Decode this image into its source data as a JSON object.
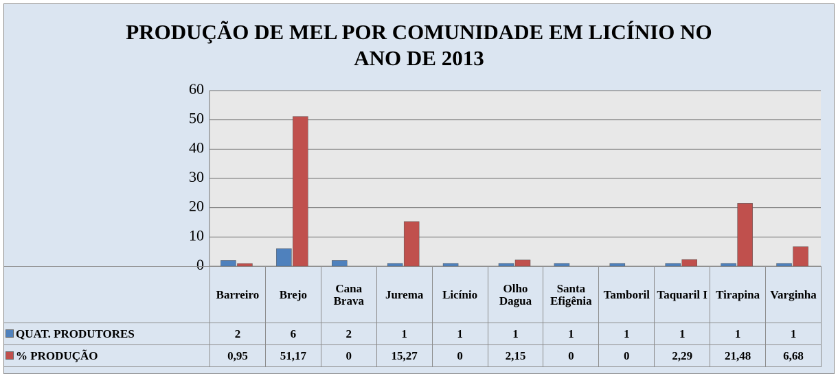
{
  "chart_data": {
    "type": "bar",
    "title": "PRODUÇÃO DE MEL POR COMUNIDADE EM LICÍNIO NO ANO DE 2013",
    "categories": [
      "Barreiro",
      "Brejo",
      "Cana Brava",
      "Jurema",
      "Licínio",
      "Olho Dagua",
      "Santa Efigênia",
      "Tamboril",
      "Taquaril I",
      "Tirapina",
      "Varginha"
    ],
    "series": [
      {
        "name": "QUAT. PRODUTORES",
        "color": "#4f81bd",
        "values": [
          2,
          6,
          2,
          1,
          1,
          1,
          1,
          1,
          1,
          1,
          1
        ]
      },
      {
        "name": "% PRODUÇÃO",
        "color": "#c0504d",
        "values": [
          0.95,
          51.17,
          0,
          15.27,
          0,
          2.15,
          0,
          0,
          2.29,
          21.48,
          6.68
        ],
        "value_labels": [
          "0,95",
          "51,17",
          "0",
          "15,27",
          "0",
          "2,15",
          "0",
          "0",
          "2,29",
          "21,48",
          "6,68"
        ]
      }
    ],
    "ylim": [
      0,
      60
    ],
    "yticks": [
      0,
      10,
      20,
      30,
      40,
      50,
      60
    ],
    "grid": true,
    "legend": "data-table"
  }
}
